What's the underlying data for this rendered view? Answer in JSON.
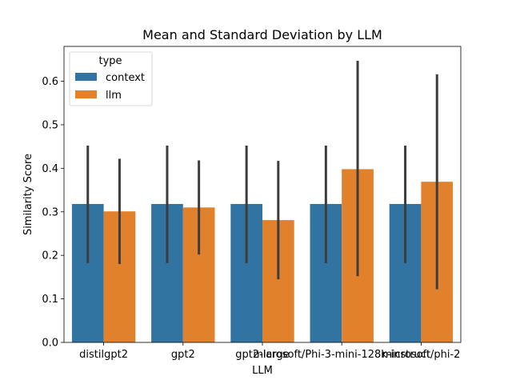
{
  "chart_data": {
    "type": "bar",
    "title": "Mean and Standard Deviation by LLM",
    "xlabel": "LLM",
    "ylabel": "Similarity Score",
    "categories": [
      "distilgpt2",
      "gpt2",
      "gpt2-large",
      "microsoft/Phi-3-mini-128k-instruct",
      "microsoft/phi-2"
    ],
    "ylim": [
      0,
      0.68
    ],
    "yticks": [
      "0.0",
      "0.1",
      "0.2",
      "0.3",
      "0.4",
      "0.5",
      "0.6"
    ],
    "legend": {
      "title": "type",
      "placement": "top-left"
    },
    "series": [
      {
        "name": "context",
        "color": "#3274a1",
        "values": [
          0.318,
          0.318,
          0.318,
          0.318,
          0.318
        ],
        "err_low": [
          0.182,
          0.182,
          0.182,
          0.182,
          0.182
        ],
        "err_high": [
          0.452,
          0.452,
          0.452,
          0.452,
          0.452
        ]
      },
      {
        "name": "llm",
        "color": "#e1812c",
        "values": [
          0.301,
          0.31,
          0.281,
          0.398,
          0.369
        ],
        "err_low": [
          0.18,
          0.202,
          0.145,
          0.152,
          0.122
        ],
        "err_high": [
          0.422,
          0.418,
          0.417,
          0.647,
          0.616
        ]
      }
    ],
    "errorbar_color": "#3d3d3d",
    "grid": false
  }
}
